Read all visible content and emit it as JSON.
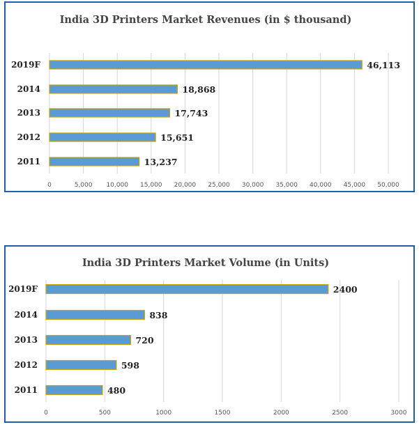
{
  "chart_data": [
    {
      "type": "bar",
      "orientation": "horizontal",
      "title": "India 3D Printers Market Revenues (in $ thousand)",
      "categories": [
        "2019F",
        "2014",
        "2013",
        "2012",
        "2011"
      ],
      "values": [
        46113,
        18868,
        17743,
        15651,
        13237
      ],
      "value_labels": [
        "46,113",
        "18,868",
        "17,743",
        "15,651",
        "13,237"
      ],
      "xlim": [
        0,
        50000
      ],
      "ticks": [
        0,
        5000,
        10000,
        15000,
        20000,
        25000,
        30000,
        35000,
        40000,
        45000,
        50000
      ],
      "tick_labels": [
        "0",
        "5,000",
        "10,000",
        "15,000",
        "20,000",
        "25,000",
        "30,000",
        "35,000",
        "40,000",
        "45,000",
        "50,000"
      ],
      "xlabel": "",
      "ylabel": "",
      "grid": true,
      "bar_color": "#5b9bd5",
      "bar_edge_color": "#c9a300"
    },
    {
      "type": "bar",
      "orientation": "horizontal",
      "title": "India 3D Printers Market Volume (in Units)",
      "categories": [
        "2019F",
        "2014",
        "2013",
        "2012",
        "2011"
      ],
      "values": [
        2400,
        838,
        720,
        598,
        480
      ],
      "value_labels": [
        "2400",
        "838",
        "720",
        "598",
        "480"
      ],
      "xlim": [
        0,
        3000
      ],
      "ticks": [
        0,
        500,
        1000,
        1500,
        2000,
        2500,
        3000
      ],
      "tick_labels": [
        "0",
        "500",
        "1000",
        "1500",
        "2000",
        "2500",
        "3000"
      ],
      "xlabel": "",
      "ylabel": "",
      "grid": true,
      "bar_color": "#5b9bd5",
      "bar_edge_color": "#c9a300"
    }
  ]
}
